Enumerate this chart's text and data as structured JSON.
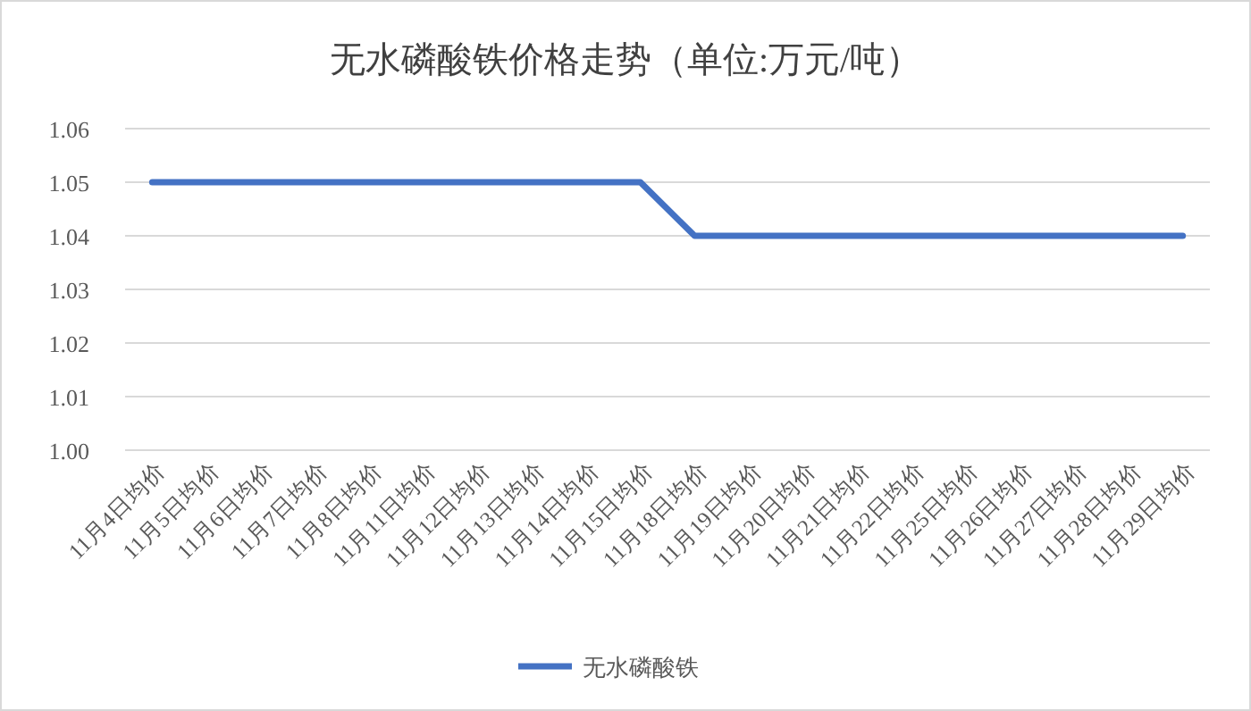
{
  "chart_data": {
    "type": "line",
    "title": "无水磷酸铁价格走势（单位:万元/吨）",
    "categories": [
      "11月4日均价",
      "11月5日均价",
      "11月6日均价",
      "11月7日均价",
      "11月8日均价",
      "11月11日均价",
      "11月12日均价",
      "11月13日均价",
      "11月14日均价",
      "11月15日均价",
      "11月18日均价",
      "11月19日均价",
      "11月20日均价",
      "11月21日均价",
      "11月22日均价",
      "11月25日均价",
      "11月26日均价",
      "11月27日均价",
      "11月28日均价",
      "11月29日均价"
    ],
    "series": [
      {
        "name": "无水磷酸铁",
        "color": "#4472c4",
        "values": [
          1.05,
          1.05,
          1.05,
          1.05,
          1.05,
          1.05,
          1.05,
          1.05,
          1.05,
          1.05,
          1.04,
          1.04,
          1.04,
          1.04,
          1.04,
          1.04,
          1.04,
          1.04,
          1.04,
          1.04
        ]
      }
    ],
    "ylim": [
      1.0,
      1.06
    ],
    "yticks": [
      {
        "value": 1.0,
        "label": "1.00"
      },
      {
        "value": 1.01,
        "label": "1.01"
      },
      {
        "value": 1.02,
        "label": "1.02"
      },
      {
        "value": 1.03,
        "label": "1.03"
      },
      {
        "value": 1.04,
        "label": "1.04"
      },
      {
        "value": 1.05,
        "label": "1.05"
      },
      {
        "value": 1.06,
        "label": "1.06"
      }
    ],
    "grid": "y",
    "legend": "bottom",
    "marker": "none",
    "line_style": "solid"
  }
}
